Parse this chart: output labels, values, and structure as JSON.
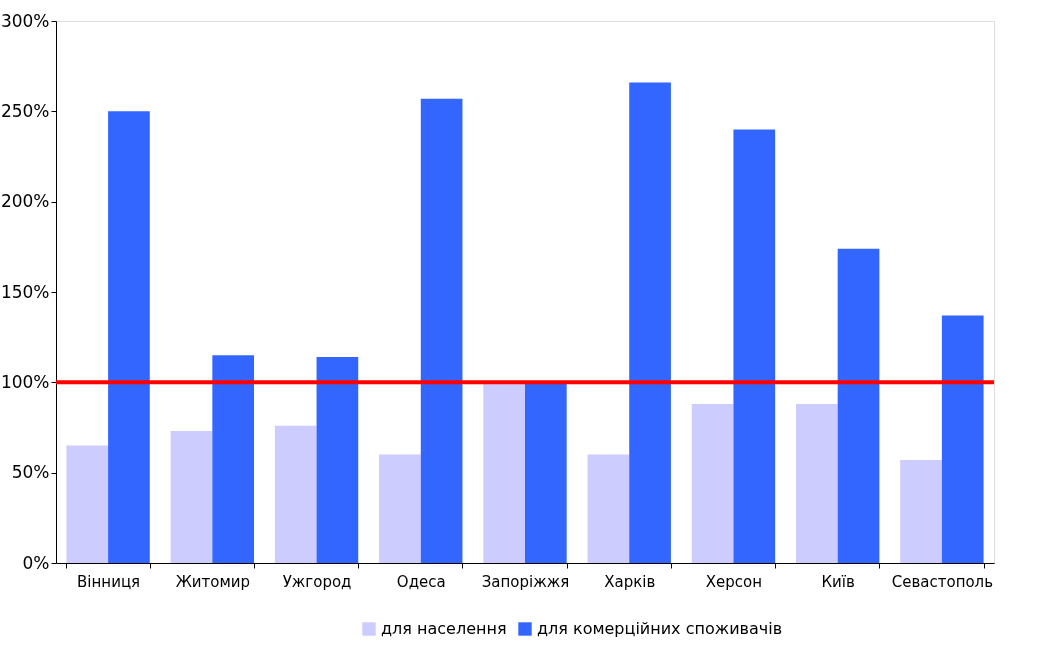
{
  "chart_data": {
    "type": "bar",
    "categories": [
      "Вінниця",
      "Житомир",
      "Ужгород",
      "Одеса",
      "Запоріжжя",
      "Харків",
      "Херсон",
      "Київ",
      "Севастополь"
    ],
    "series": [
      {
        "name": "для населення",
        "color": "#ccccff",
        "values": [
          65,
          73,
          76,
          60,
          100,
          60,
          88,
          88,
          57
        ]
      },
      {
        "name": "для комерційних споживачів",
        "color": "#3366ff",
        "values": [
          250,
          115,
          114,
          257,
          100,
          266,
          240,
          174,
          137
        ]
      }
    ],
    "ylim": [
      0,
      300
    ],
    "yticks": [
      {
        "value": 0,
        "label": "0%"
      },
      {
        "value": 50,
        "label": "50%"
      },
      {
        "value": 100,
        "label": "100%"
      },
      {
        "value": 150,
        "label": "150%"
      },
      {
        "value": 200,
        "label": "200%"
      },
      {
        "value": 250,
        "label": "250%"
      },
      {
        "value": 300,
        "label": "300%"
      }
    ],
    "ref_lines": [
      {
        "axis": "y",
        "value": 100,
        "color": "#ff0000"
      }
    ],
    "grid": false,
    "legend": "bottom"
  }
}
